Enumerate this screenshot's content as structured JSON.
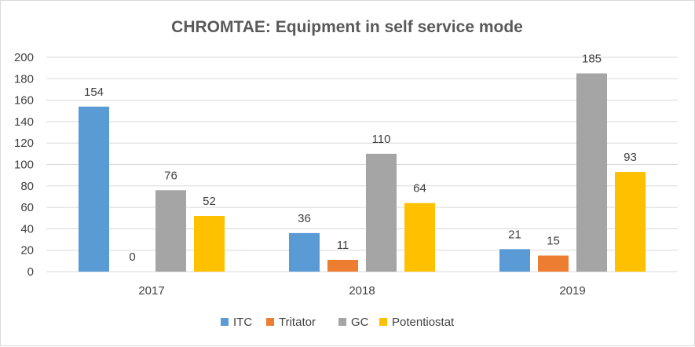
{
  "chart_data": {
    "type": "bar",
    "title": "CHROMTAE: Equipment in self service mode",
    "categories": [
      "2017",
      "2018",
      "2019"
    ],
    "series": [
      {
        "name": "ITC",
        "values": [
          154,
          36,
          21
        ],
        "color": "#5B9BD5"
      },
      {
        "name": "Tritator",
        "values": [
          0,
          11,
          15
        ],
        "color": "#ED7D31"
      },
      {
        "name": "GC",
        "values": [
          76,
          110,
          185
        ],
        "color": "#A5A5A5"
      },
      {
        "name": "Potentiostat",
        "values": [
          52,
          64,
          93
        ],
        "color": "#FFC000"
      }
    ],
    "ylim": [
      0,
      200
    ],
    "yticks": [
      0,
      20,
      40,
      60,
      80,
      100,
      120,
      140,
      160,
      180,
      200
    ],
    "grid": true,
    "legend_position": "bottom",
    "data_labels": true
  }
}
